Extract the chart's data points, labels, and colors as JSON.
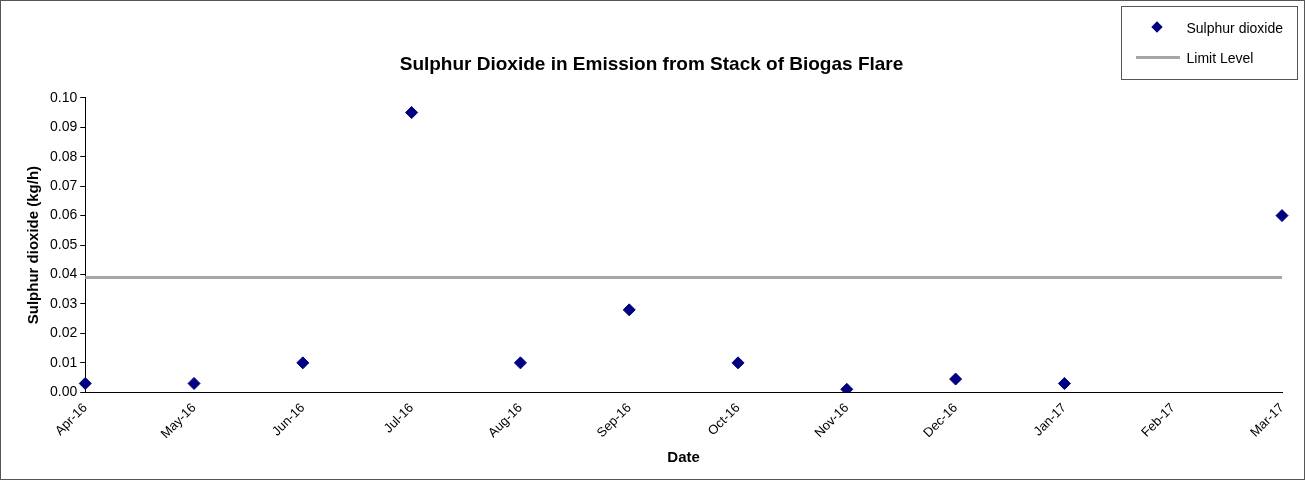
{
  "chart_data": {
    "type": "scatter",
    "title": "Sulphur Dioxide in Emission from Stack of Biogas Flare",
    "xlabel": "Date",
    "ylabel": "Sulphur dioxide (kg/h)",
    "categories": [
      "Apr-16",
      "May-16",
      "Jun-16",
      "Jul-16",
      "Aug-16",
      "Sep-16",
      "Oct-16",
      "Nov-16",
      "Dec-16",
      "Jan-17",
      "Feb-17",
      "Mar-17"
    ],
    "series": [
      {
        "name": "Sulphur dioxide",
        "marker": "diamond",
        "color": "#000080",
        "values": [
          0.003,
          0.003,
          0.01,
          0.095,
          0.01,
          0.028,
          0.01,
          0.001,
          0.0045,
          0.003,
          null,
          0.06
        ]
      },
      {
        "name": "Limit Level",
        "type": "line",
        "marker": "none",
        "color": "#a6a6a6",
        "values": [
          0.039,
          0.039,
          0.039,
          0.039,
          0.039,
          0.039,
          0.039,
          0.039,
          0.039,
          0.039,
          0.039,
          0.039
        ]
      }
    ],
    "ylim": [
      0,
      0.1
    ],
    "yticks": [
      {
        "value": 0,
        "label": "0.00"
      },
      {
        "value": 0.01,
        "label": "0.01"
      },
      {
        "value": 0.02,
        "label": "0.02"
      },
      {
        "value": 0.03,
        "label": "0.03"
      },
      {
        "value": 0.04,
        "label": "0.04"
      },
      {
        "value": 0.05,
        "label": "0.05"
      },
      {
        "value": 0.06,
        "label": "0.06"
      },
      {
        "value": 0.07,
        "label": "0.07"
      },
      {
        "value": 0.08,
        "label": "0.08"
      },
      {
        "value": 0.09,
        "label": "0.09"
      },
      {
        "value": 0.1,
        "label": "0.10"
      }
    ],
    "grid": false,
    "legend": "top right",
    "line_style": "solid"
  }
}
